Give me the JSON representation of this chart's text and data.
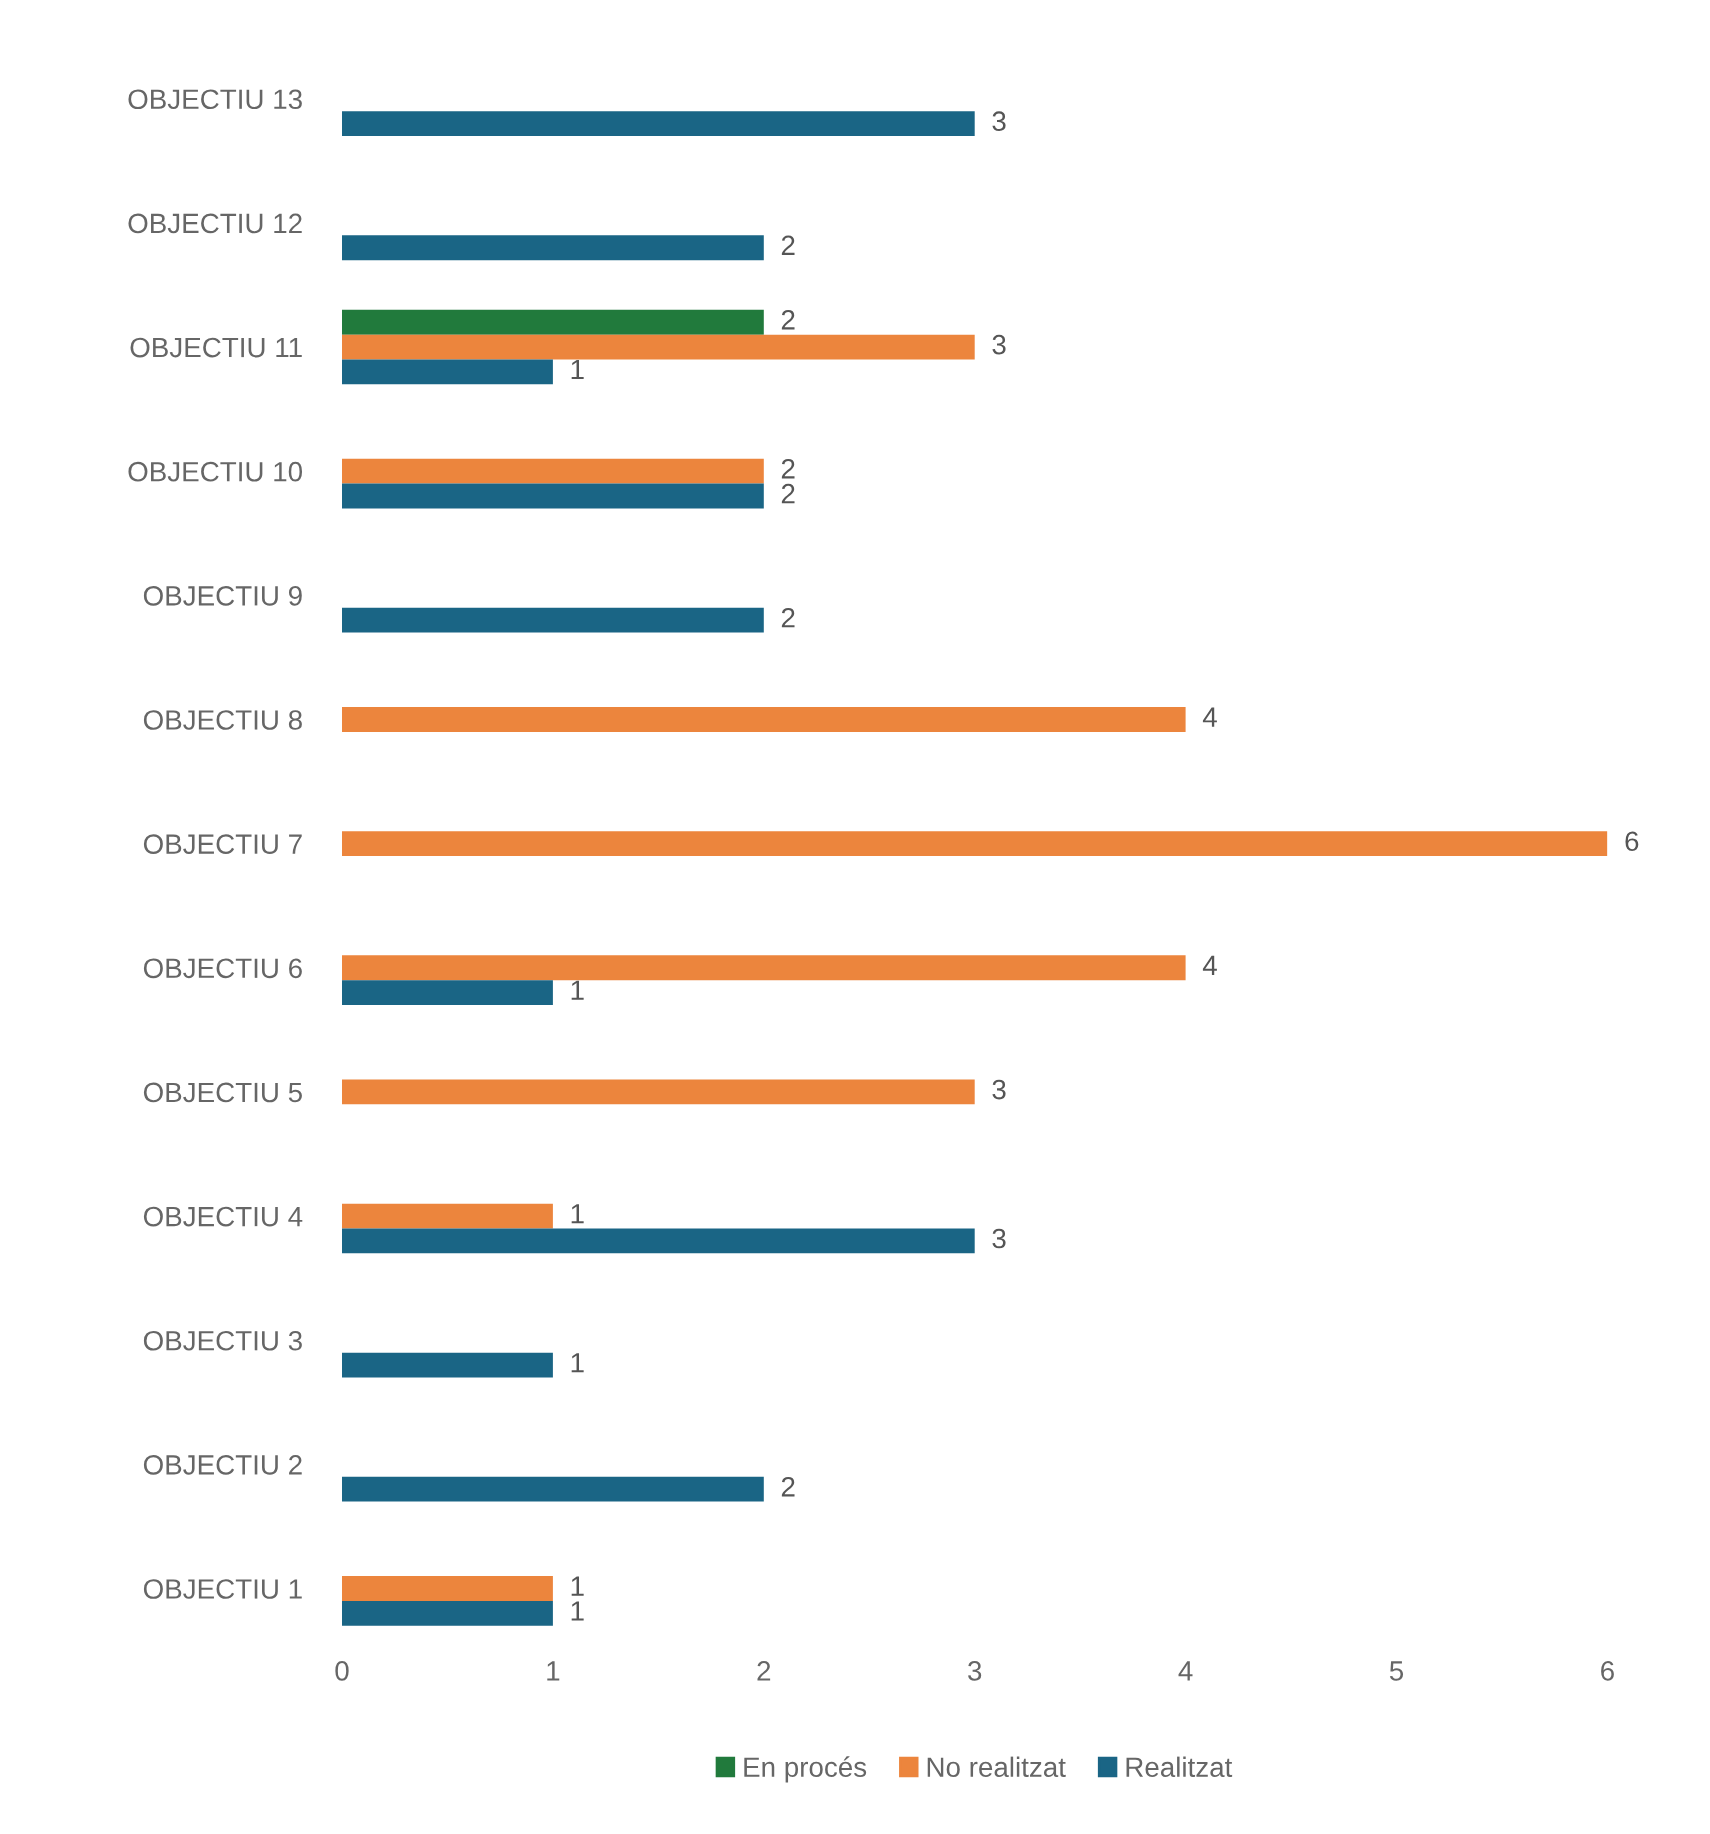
{
  "chart_data": {
    "type": "bar",
    "orientation": "horizontal",
    "categories": [
      "OBJECTIU 13",
      "OBJECTIU 12",
      "OBJECTIU 11",
      "OBJECTIU 10",
      "OBJECTIU 9",
      "OBJECTIU 8",
      "OBJECTIU 7",
      "OBJECTIU 6",
      "OBJECTIU 5",
      "OBJECTIU 4",
      "OBJECTIU 3",
      "OBJECTIU 2",
      "OBJECTIU 1"
    ],
    "series": [
      {
        "name": "En procés",
        "color": "#217a3c",
        "values": [
          null,
          null,
          2,
          null,
          null,
          null,
          null,
          null,
          null,
          null,
          null,
          null,
          null
        ]
      },
      {
        "name": "No realitzat",
        "color": "#ec853d",
        "values": [
          null,
          null,
          3,
          2,
          null,
          4,
          6,
          4,
          3,
          1,
          null,
          null,
          1
        ]
      },
      {
        "name": "Realitzat",
        "color": "#1a6585",
        "values": [
          3,
          2,
          1,
          2,
          2,
          null,
          null,
          1,
          null,
          3,
          1,
          2,
          1
        ]
      }
    ],
    "xlim": [
      0,
      6
    ],
    "xticks": [
      0,
      1,
      2,
      3,
      4,
      5,
      6
    ],
    "grid": false,
    "legend": "bottom",
    "data_labels": true
  }
}
